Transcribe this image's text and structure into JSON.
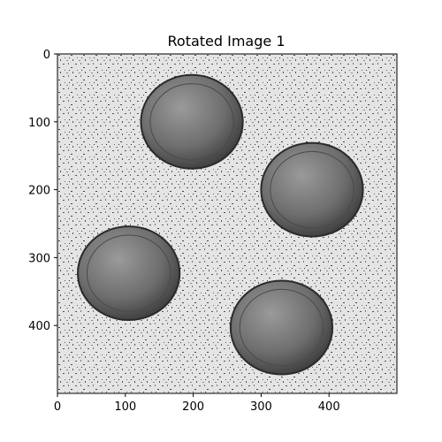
{
  "chart_data": {
    "type": "image",
    "title": "Rotated Image 1",
    "xlabel": "",
    "ylabel": "",
    "image_shape": [
      500,
      500
    ],
    "xlim": [
      0,
      500
    ],
    "ylim": [
      500,
      0
    ],
    "xticks": [
      0,
      100,
      200,
      300,
      400
    ],
    "yticks": [
      0,
      100,
      200,
      300,
      400
    ],
    "grid": false,
    "colormap": "gray",
    "content": {
      "background": "light gray speckled texture",
      "coins": [
        {
          "cx": 198,
          "cy": 100,
          "r": 75
        },
        {
          "cx": 375,
          "cy": 200,
          "r": 75
        },
        {
          "cx": 105,
          "cy": 323,
          "r": 75
        },
        {
          "cx": 330,
          "cy": 403,
          "r": 75
        }
      ]
    }
  },
  "colors": {
    "background_fill": "#e4e4e4",
    "coin_fill": "#6e6e6e",
    "coin_edge": "#2a2a2a",
    "frame": "#000000"
  }
}
